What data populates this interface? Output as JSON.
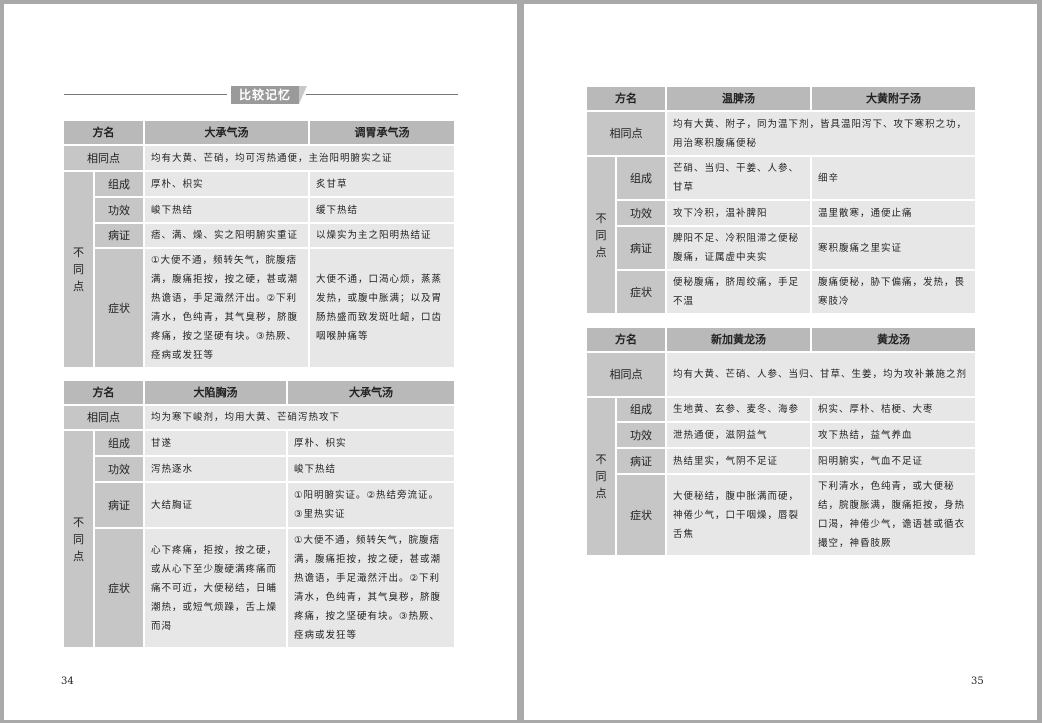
{
  "left_page": {
    "section_title": "比较记忆",
    "page_number": "34",
    "tables": [
      {
        "header": [
          "方名",
          "大承气汤",
          "调胃承气汤"
        ],
        "common_label": "相同点",
        "common": "均有大黄、芒硝，均可泻热通便，主治阳明腑实之证",
        "diff_label": "不同点",
        "rows": [
          {
            "label": "组成",
            "a": "厚朴、枳实",
            "b": "炙甘草"
          },
          {
            "label": "功效",
            "a": "峻下热结",
            "b": "缓下热结"
          },
          {
            "label": "病证",
            "a": "痞、满、燥、实之阳明腑实重证",
            "b": "以燥实为主之阳明热结证"
          },
          {
            "label": "症状",
            "a": "①大便不通，频转矢气，脘腹痞满，腹痛拒按，按之硬，甚或潮热谵语，手足濈然汗出。②下利清水，色纯青，其气臭秽，脐腹疼痛，按之坚硬有块。③热厥、痉病或发狂等",
            "b": "大便不通，口渴心烦，蒸蒸发热，或腹中胀满；以及胃肠热盛而致发斑吐衄，口齿咽喉肿痛等"
          }
        ]
      },
      {
        "header": [
          "方名",
          "大陷胸汤",
          "大承气汤"
        ],
        "common_label": "相同点",
        "common": "均为寒下峻剂，均用大黄、芒硝泻热攻下",
        "diff_label": "不同点",
        "rows": [
          {
            "label": "组成",
            "a": "甘遂",
            "b": "厚朴、枳实"
          },
          {
            "label": "功效",
            "a": "泻热逐水",
            "b": "峻下热结"
          },
          {
            "label": "病证",
            "a": "大结胸证",
            "b": "①阳明腑实证。②热结旁流证。③里热实证"
          },
          {
            "label": "症状",
            "a": "心下疼痛，拒按，按之硬，或从心下至少腹硬满疼痛而痛不可近，大便秘结，日晡潮热，或短气烦躁，舌上燥而渴",
            "b": "①大便不通，频转矢气，脘腹痞满，腹痛拒按，按之硬，甚或潮热谵语，手足濈然汗出。②下利清水，色纯青，其气臭秽，脐腹疼痛，按之坚硬有块。③热厥、痉病或发狂等"
          }
        ]
      }
    ]
  },
  "right_page": {
    "page_number": "35",
    "tables": [
      {
        "header": [
          "方名",
          "温脾汤",
          "大黄附子汤"
        ],
        "common_label": "相同点",
        "common": "均有大黄、附子，同为温下剂，皆具温阳泻下、攻下寒积之功，用治寒积腹痛便秘",
        "diff_label": "不同点",
        "rows": [
          {
            "label": "组成",
            "a": "芒硝、当归、干姜、人参、甘草",
            "b": "细辛"
          },
          {
            "label": "功效",
            "a": "攻下冷积，温补脾阳",
            "b": "温里散寒，通便止痛"
          },
          {
            "label": "病证",
            "a": "脾阳不足、冷积阻滞之便秘腹痛，证属虚中夹实",
            "b": "寒积腹痛之里实证"
          },
          {
            "label": "症状",
            "a": "便秘腹痛，脐周绞痛，手足不温",
            "b": "腹痛便秘，胁下偏痛，发热，畏寒肢冷"
          }
        ]
      },
      {
        "header": [
          "方名",
          "新加黄龙汤",
          "黄龙汤"
        ],
        "common_label": "相同点",
        "common": "均有大黄、芒硝、人参、当归、甘草、生姜，均为攻补兼施之剂",
        "diff_label": "不同点",
        "rows": [
          {
            "label": "组成",
            "a": "生地黄、玄参、麦冬、海参",
            "b": "枳实、厚朴、桔梗、大枣"
          },
          {
            "label": "功效",
            "a": "泄热通便，滋阴益气",
            "b": "攻下热结，益气养血"
          },
          {
            "label": "病证",
            "a": "热结里实，气阴不足证",
            "b": "阳明腑实，气血不足证"
          },
          {
            "label": "症状",
            "a": "大便秘结，腹中胀满而硬，神倦少气，口干咽燥，唇裂舌焦",
            "b": "下利清水，色纯青，或大便秘结，脘腹胀满，腹痛拒按，身热口渴，神倦少气，谵语甚或循衣撮空，神昏肢厥"
          }
        ]
      }
    ]
  }
}
